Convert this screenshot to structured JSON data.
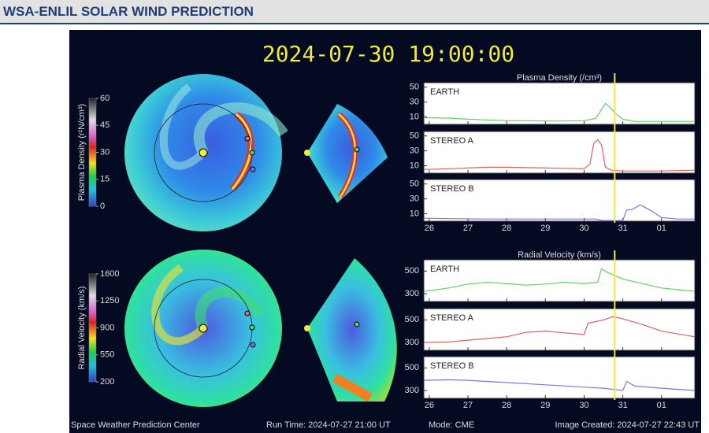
{
  "header": {
    "title": "WSA-ENLIL SOLAR WIND PREDICTION"
  },
  "timestamp": "2024-07-30 19:00:00",
  "colorbars": [
    {
      "label": "Plasma Density (r²N/cm³)",
      "ticks": [
        60,
        45,
        30,
        15,
        0
      ]
    },
    {
      "label": "Radial Velocity (km/s)",
      "ticks": [
        1600,
        1250,
        900,
        550,
        200
      ]
    }
  ],
  "charts": [
    {
      "title": "Plasma Density (/cm³)",
      "xlim": [
        25.86,
        32.86
      ],
      "xticks": [
        26,
        27,
        28,
        29,
        30,
        31,
        {
          "value": 32,
          "label": "01"
        }
      ],
      "now": 30.79,
      "ylim": [
        0,
        56
      ],
      "yticks": [
        10,
        30,
        50
      ],
      "panels": [
        {
          "name": "EARTH",
          "color": "#5fd35f",
          "x": [
            25.86,
            26.5,
            27,
            27.5,
            28,
            28.5,
            29,
            29.5,
            30,
            30.3,
            30.45,
            30.55,
            30.65,
            30.8,
            31,
            31.3,
            32,
            32.86
          ],
          "values": [
            9,
            8.5,
            7,
            6,
            5,
            5,
            4.5,
            4.5,
            5,
            8,
            20,
            28,
            24,
            15,
            7,
            4,
            4,
            4
          ]
        },
        {
          "name": "STEREO A",
          "color": "#e0605a",
          "x": [
            25.86,
            26.5,
            27,
            27.5,
            28,
            28.5,
            29,
            29.5,
            30,
            30.15,
            30.25,
            30.35,
            30.45,
            30.55,
            30.7,
            31,
            32,
            32.86
          ],
          "values": [
            5,
            6,
            7,
            8,
            8,
            7.5,
            7,
            6.5,
            6,
            12,
            40,
            45,
            38,
            8,
            4,
            3,
            3,
            4
          ]
        },
        {
          "name": "STEREO B",
          "color": "#7f72e8",
          "x": [
            25.86,
            26.5,
            27.5,
            28.5,
            29.5,
            30.3,
            30.5,
            31,
            31.1,
            31.25,
            31.45,
            31.7,
            32,
            32.4,
            32.86
          ],
          "values": [
            4,
            3.5,
            3,
            3,
            3,
            3,
            1,
            1,
            15,
            16,
            22,
            15,
            5,
            3,
            3
          ]
        }
      ]
    },
    {
      "title": "Radial Velocity (km/s)",
      "xlim": [
        25.86,
        32.86
      ],
      "xticks": [
        26,
        27,
        28,
        29,
        30,
        31,
        {
          "value": 32,
          "label": "01"
        }
      ],
      "now": 30.79,
      "ylim": [
        230,
        600
      ],
      "yticks": [
        300,
        500
      ],
      "panels": [
        {
          "name": "EARTH",
          "color": "#5fd35f",
          "x": [
            25.86,
            26.5,
            27,
            27.5,
            28,
            28.5,
            29,
            29.5,
            30,
            30.35,
            30.45,
            30.6,
            31,
            31.5,
            32,
            32.86
          ],
          "values": [
            320,
            350,
            385,
            400,
            390,
            375,
            385,
            400,
            390,
            400,
            520,
            490,
            430,
            390,
            350,
            320
          ]
        },
        {
          "name": "STEREO A",
          "color": "#e0605a",
          "x": [
            25.86,
            26.5,
            27,
            27.5,
            28,
            28.5,
            29,
            29.5,
            30,
            30.1,
            30.5,
            30.75,
            31,
            31.5,
            32,
            32.86
          ],
          "values": [
            300,
            305,
            320,
            335,
            350,
            390,
            400,
            385,
            370,
            470,
            500,
            530,
            510,
            460,
            400,
            350
          ]
        },
        {
          "name": "STEREO B",
          "color": "#7f72e8",
          "x": [
            25.86,
            26.5,
            27,
            28,
            29,
            30,
            30.5,
            31,
            31.1,
            31.3,
            32,
            32.86
          ],
          "values": [
            390,
            395,
            390,
            370,
            350,
            330,
            320,
            300,
            380,
            340,
            320,
            300
          ]
        }
      ]
    }
  ],
  "footer": {
    "center": "Space Weather Prediction Center",
    "run_time": "Run Time: 2024-07-27 21:00 UT",
    "mode": "Mode: CME",
    "created": "Image Created: 2024-07-27 22:43 UT"
  }
}
